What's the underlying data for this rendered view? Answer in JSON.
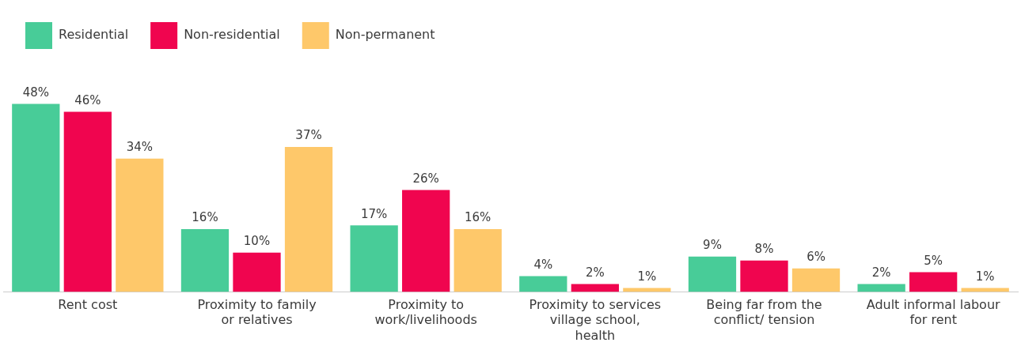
{
  "chart_data": {
    "type": "bar",
    "categories": [
      "Rent cost",
      "Proximity to family or relatives",
      "Proximity to work/livelihoods",
      "Proximity to services village school, health",
      "Being far from the conflict/ tension",
      "Adult informal labour for rent"
    ],
    "series": [
      {
        "name": "Residential",
        "color": "#48cc98",
        "values": [
          48,
          16,
          17,
          4,
          9,
          2
        ],
        "value_labels": [
          "48%",
          "16%",
          "17%",
          "4%",
          "9%",
          "2%"
        ]
      },
      {
        "name": "Non-residential",
        "color": "#f0054f",
        "values": [
          46,
          10,
          26,
          2,
          8,
          5
        ],
        "value_labels": [
          "46%",
          "10%",
          "26%",
          "2%",
          "8%",
          "5%"
        ]
      },
      {
        "name": "Non-permanent",
        "color": "#fec86a",
        "values": [
          34,
          37,
          16,
          1,
          6,
          1
        ],
        "value_labels": [
          "34%",
          "37%",
          "16%",
          "1%",
          "6%",
          "1%"
        ]
      }
    ],
    "legend": "top left",
    "grid": false
  }
}
